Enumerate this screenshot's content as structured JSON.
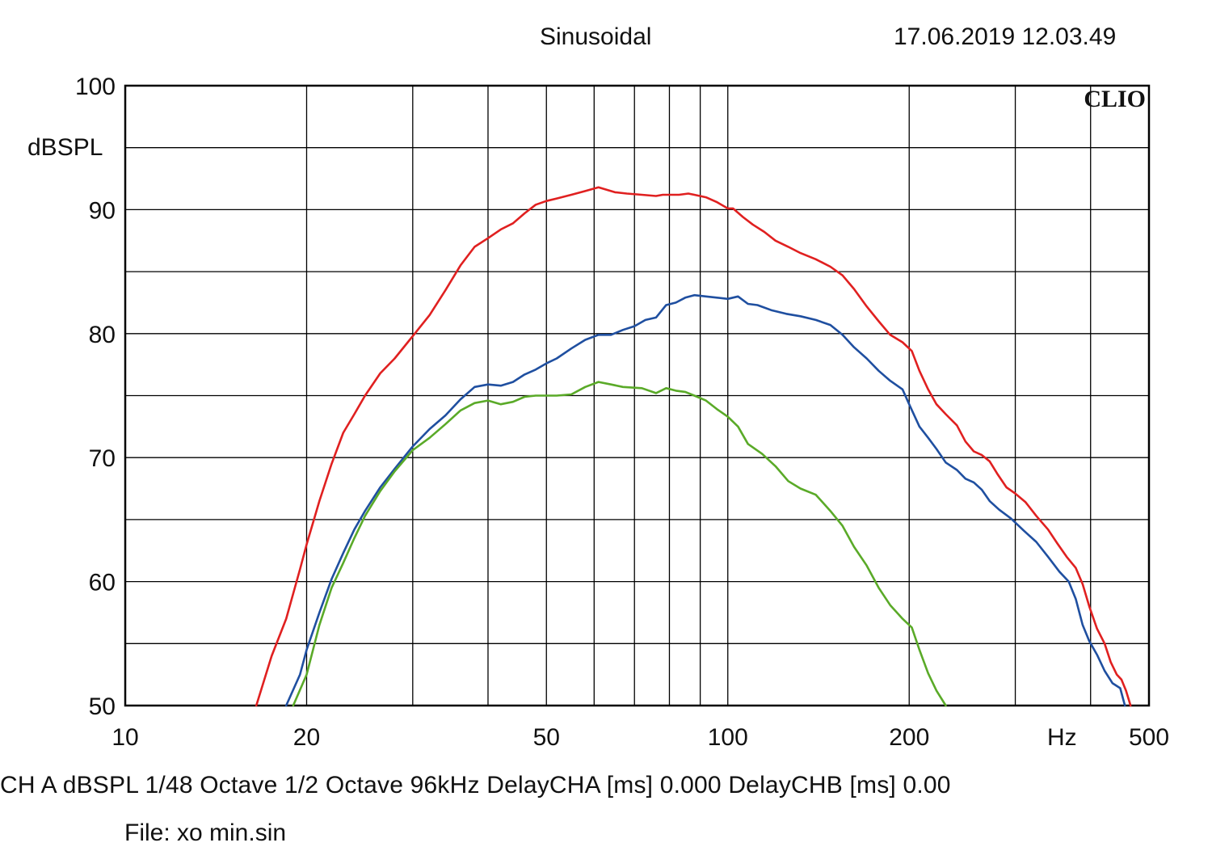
{
  "header": {
    "title": "Sinusoidal",
    "timestamp": "17.06.2019 12.03.49"
  },
  "brand": "CLIO",
  "footer": {
    "status_line": "CH A   dBSPL   1/48 Octave   1/2 Octave   96kHz   DelayCHA [ms] 0.000   DelayCHB [ms] 0.00",
    "file": "File: xo min.sin"
  },
  "chart_data": {
    "type": "line",
    "xscale": "log",
    "xlim": [
      10,
      500
    ],
    "ylim": [
      50,
      100
    ],
    "ylabel": "dBSPL",
    "xlabel": "Hz",
    "x_tick_labels": [
      {
        "value": 10,
        "label": "10"
      },
      {
        "value": 20,
        "label": "20"
      },
      {
        "value": 50,
        "label": "50"
      },
      {
        "value": 100,
        "label": "100"
      },
      {
        "value": 200,
        "label": "200"
      },
      {
        "value": 500,
        "label": "500"
      }
    ],
    "y_tick_labels": [
      {
        "value": 50,
        "label": "50"
      },
      {
        "value": 60,
        "label": "60"
      },
      {
        "value": 70,
        "label": "70"
      },
      {
        "value": 80,
        "label": "80"
      },
      {
        "value": 90,
        "label": "90"
      },
      {
        "value": 100,
        "label": "100"
      }
    ],
    "x_gridlines": [
      20,
      30,
      40,
      50,
      60,
      70,
      80,
      90,
      100,
      200,
      300,
      400
    ],
    "y_gridlines": [
      55,
      60,
      65,
      70,
      75,
      80,
      85,
      90,
      95
    ],
    "series": [
      {
        "color": "#e02020",
        "points": [
          [
            16.5,
            50
          ],
          [
            17.5,
            54
          ],
          [
            18.5,
            57
          ],
          [
            19.5,
            61
          ],
          [
            20,
            63
          ],
          [
            21,
            66.5
          ],
          [
            22,
            69.5
          ],
          [
            23,
            72
          ],
          [
            24,
            73.5
          ],
          [
            25,
            75
          ],
          [
            26.5,
            76.8
          ],
          [
            28,
            78
          ],
          [
            30,
            79.8
          ],
          [
            32,
            81.5
          ],
          [
            34,
            83.5
          ],
          [
            36,
            85.5
          ],
          [
            38,
            87
          ],
          [
            40,
            87.7
          ],
          [
            42,
            88.4
          ],
          [
            44,
            88.9
          ],
          [
            46,
            89.7
          ],
          [
            48,
            90.4
          ],
          [
            50,
            90.7
          ],
          [
            52,
            90.9
          ],
          [
            55,
            91.2
          ],
          [
            58,
            91.5
          ],
          [
            61,
            91.8
          ],
          [
            63,
            91.6
          ],
          [
            65,
            91.4
          ],
          [
            68,
            91.3
          ],
          [
            72,
            91.2
          ],
          [
            76,
            91.1
          ],
          [
            78,
            91.2
          ],
          [
            80,
            91.2
          ],
          [
            83,
            91.2
          ],
          [
            86,
            91.3
          ],
          [
            88,
            91.2
          ],
          [
            92,
            91.0
          ],
          [
            96,
            90.6
          ],
          [
            100,
            90.1
          ],
          [
            102,
            90.1
          ],
          [
            106,
            89.4
          ],
          [
            110,
            88.8
          ],
          [
            115,
            88.2
          ],
          [
            120,
            87.5
          ],
          [
            126,
            87.0
          ],
          [
            132,
            86.5
          ],
          [
            140,
            86.0
          ],
          [
            148,
            85.4
          ],
          [
            155,
            84.7
          ],
          [
            162,
            83.6
          ],
          [
            170,
            82.2
          ],
          [
            178,
            81.0
          ],
          [
            186,
            79.9
          ],
          [
            195,
            79.3
          ],
          [
            202,
            78.6
          ],
          [
            208,
            77.0
          ],
          [
            215,
            75.5
          ],
          [
            222,
            74.3
          ],
          [
            230,
            73.5
          ],
          [
            240,
            72.6
          ],
          [
            248,
            71.3
          ],
          [
            256,
            70.5
          ],
          [
            264,
            70.2
          ],
          [
            272,
            69.7
          ],
          [
            280,
            68.7
          ],
          [
            290,
            67.6
          ],
          [
            300,
            67.1
          ],
          [
            312,
            66.4
          ],
          [
            325,
            65.3
          ],
          [
            340,
            64.2
          ],
          [
            352,
            63.1
          ],
          [
            365,
            62.0
          ],
          [
            378,
            61.1
          ],
          [
            388,
            59.8
          ],
          [
            398,
            58.0
          ],
          [
            410,
            56.2
          ],
          [
            422,
            55.0
          ],
          [
            432,
            53.5
          ],
          [
            442,
            52.5
          ],
          [
            450,
            52.1
          ],
          [
            458,
            51.2
          ],
          [
            466,
            50.0
          ]
        ]
      },
      {
        "color": "#1f4fa0",
        "points": [
          [
            18.5,
            50
          ],
          [
            19.5,
            52.5
          ],
          [
            20,
            54.5
          ],
          [
            21,
            57.5
          ],
          [
            22,
            60.2
          ],
          [
            23,
            62.3
          ],
          [
            24,
            64.2
          ],
          [
            25,
            65.7
          ],
          [
            26.5,
            67.6
          ],
          [
            28,
            69.1
          ],
          [
            30,
            70.9
          ],
          [
            32,
            72.3
          ],
          [
            34,
            73.4
          ],
          [
            36,
            74.7
          ],
          [
            38,
            75.7
          ],
          [
            40,
            75.9
          ],
          [
            42,
            75.8
          ],
          [
            44,
            76.1
          ],
          [
            46,
            76.7
          ],
          [
            48,
            77.1
          ],
          [
            50,
            77.6
          ],
          [
            52,
            78.0
          ],
          [
            55,
            78.8
          ],
          [
            58,
            79.5
          ],
          [
            61,
            79.9
          ],
          [
            64,
            79.9
          ],
          [
            67,
            80.3
          ],
          [
            70,
            80.6
          ],
          [
            73,
            81.1
          ],
          [
            76,
            81.3
          ],
          [
            79,
            82.3
          ],
          [
            82,
            82.5
          ],
          [
            85,
            82.9
          ],
          [
            88,
            83.1
          ],
          [
            92,
            83.0
          ],
          [
            96,
            82.9
          ],
          [
            100,
            82.8
          ],
          [
            104,
            83.0
          ],
          [
            108,
            82.4
          ],
          [
            112,
            82.3
          ],
          [
            118,
            81.9
          ],
          [
            125,
            81.6
          ],
          [
            132,
            81.4
          ],
          [
            140,
            81.1
          ],
          [
            148,
            80.7
          ],
          [
            155,
            79.9
          ],
          [
            162,
            78.9
          ],
          [
            170,
            78.0
          ],
          [
            178,
            77.0
          ],
          [
            186,
            76.2
          ],
          [
            195,
            75.5
          ],
          [
            200,
            74.3
          ],
          [
            208,
            72.5
          ],
          [
            215,
            71.6
          ],
          [
            222,
            70.7
          ],
          [
            230,
            69.6
          ],
          [
            240,
            69.0
          ],
          [
            248,
            68.3
          ],
          [
            256,
            68.0
          ],
          [
            264,
            67.4
          ],
          [
            272,
            66.5
          ],
          [
            282,
            65.8
          ],
          [
            295,
            65.1
          ],
          [
            310,
            64.1
          ],
          [
            325,
            63.2
          ],
          [
            340,
            62.0
          ],
          [
            355,
            60.8
          ],
          [
            368,
            60.0
          ],
          [
            378,
            58.6
          ],
          [
            388,
            56.5
          ],
          [
            398,
            55.2
          ],
          [
            410,
            54.1
          ],
          [
            422,
            52.8
          ],
          [
            435,
            51.8
          ],
          [
            448,
            51.4
          ],
          [
            456,
            50.0
          ]
        ]
      },
      {
        "color": "#5aaa28",
        "points": [
          [
            19,
            50
          ],
          [
            20,
            52.5
          ],
          [
            21,
            56.5
          ],
          [
            22,
            59.5
          ],
          [
            23,
            61.5
          ],
          [
            24,
            63.5
          ],
          [
            25,
            65.3
          ],
          [
            26.5,
            67.3
          ],
          [
            28,
            68.9
          ],
          [
            30,
            70.6
          ],
          [
            32,
            71.6
          ],
          [
            34,
            72.7
          ],
          [
            36,
            73.8
          ],
          [
            38,
            74.4
          ],
          [
            40,
            74.6
          ],
          [
            42,
            74.3
          ],
          [
            44,
            74.5
          ],
          [
            46,
            74.9
          ],
          [
            48,
            75.0
          ],
          [
            52,
            75.0
          ],
          [
            55,
            75.1
          ],
          [
            58,
            75.7
          ],
          [
            61,
            76.1
          ],
          [
            64,
            75.9
          ],
          [
            67,
            75.7
          ],
          [
            72,
            75.6
          ],
          [
            76,
            75.2
          ],
          [
            79,
            75.6
          ],
          [
            82,
            75.4
          ],
          [
            85,
            75.3
          ],
          [
            88,
            75.0
          ],
          [
            92,
            74.6
          ],
          [
            96,
            73.9
          ],
          [
            100,
            73.3
          ],
          [
            104,
            72.5
          ],
          [
            108,
            71.1
          ],
          [
            114,
            70.3
          ],
          [
            120,
            69.3
          ],
          [
            126,
            68.1
          ],
          [
            132,
            67.5
          ],
          [
            140,
            67.0
          ],
          [
            148,
            65.7
          ],
          [
            155,
            64.5
          ],
          [
            162,
            62.8
          ],
          [
            170,
            61.3
          ],
          [
            178,
            59.5
          ],
          [
            186,
            58.1
          ],
          [
            195,
            57.0
          ],
          [
            202,
            56.3
          ],
          [
            208,
            54.5
          ],
          [
            215,
            52.6
          ],
          [
            222,
            51.2
          ],
          [
            230,
            50.0
          ]
        ]
      }
    ]
  }
}
